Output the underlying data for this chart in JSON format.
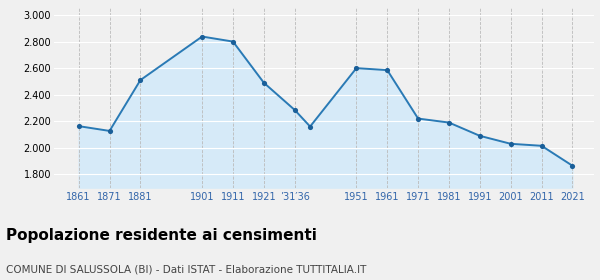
{
  "years": [
    1861,
    1871,
    1881,
    1901,
    1911,
    1921,
    1931,
    1936,
    1951,
    1961,
    1971,
    1981,
    1991,
    2001,
    2011,
    2021
  ],
  "population": [
    2163,
    2127,
    2510,
    2838,
    2800,
    2490,
    2285,
    2160,
    2600,
    2585,
    2220,
    2190,
    2090,
    2030,
    2015,
    1865
  ],
  "line_color": "#2a7ab5",
  "fill_color": "#d6eaf8",
  "marker_color": "#1a5f99",
  "background_color": "#f0f0f0",
  "title": "Popolazione residente ai censimenti",
  "subtitle": "COMUNE DI SALUSSOLA (BI) - Dati ISTAT - Elaborazione TUTTITALIA.IT",
  "ylim": [
    1700,
    3050
  ],
  "yticks": [
    1800,
    2000,
    2200,
    2400,
    2600,
    2800,
    3000
  ],
  "x_tick_positions": [
    1861,
    1871,
    1881,
    1901,
    1911,
    1921,
    1931,
    1951,
    1961,
    1971,
    1981,
    1991,
    2001,
    2011,
    2021
  ],
  "x_tick_labels": [
    "1861",
    "1871",
    "1881",
    "1901",
    "1911",
    "1921",
    "’31′36",
    "1951",
    "1961",
    "1971",
    "1981",
    "1991",
    "2001",
    "2011",
    "2021"
  ],
  "title_fontsize": 11,
  "subtitle_fontsize": 7.5,
  "tick_fontsize": 7,
  "label_color": "#3366aa"
}
